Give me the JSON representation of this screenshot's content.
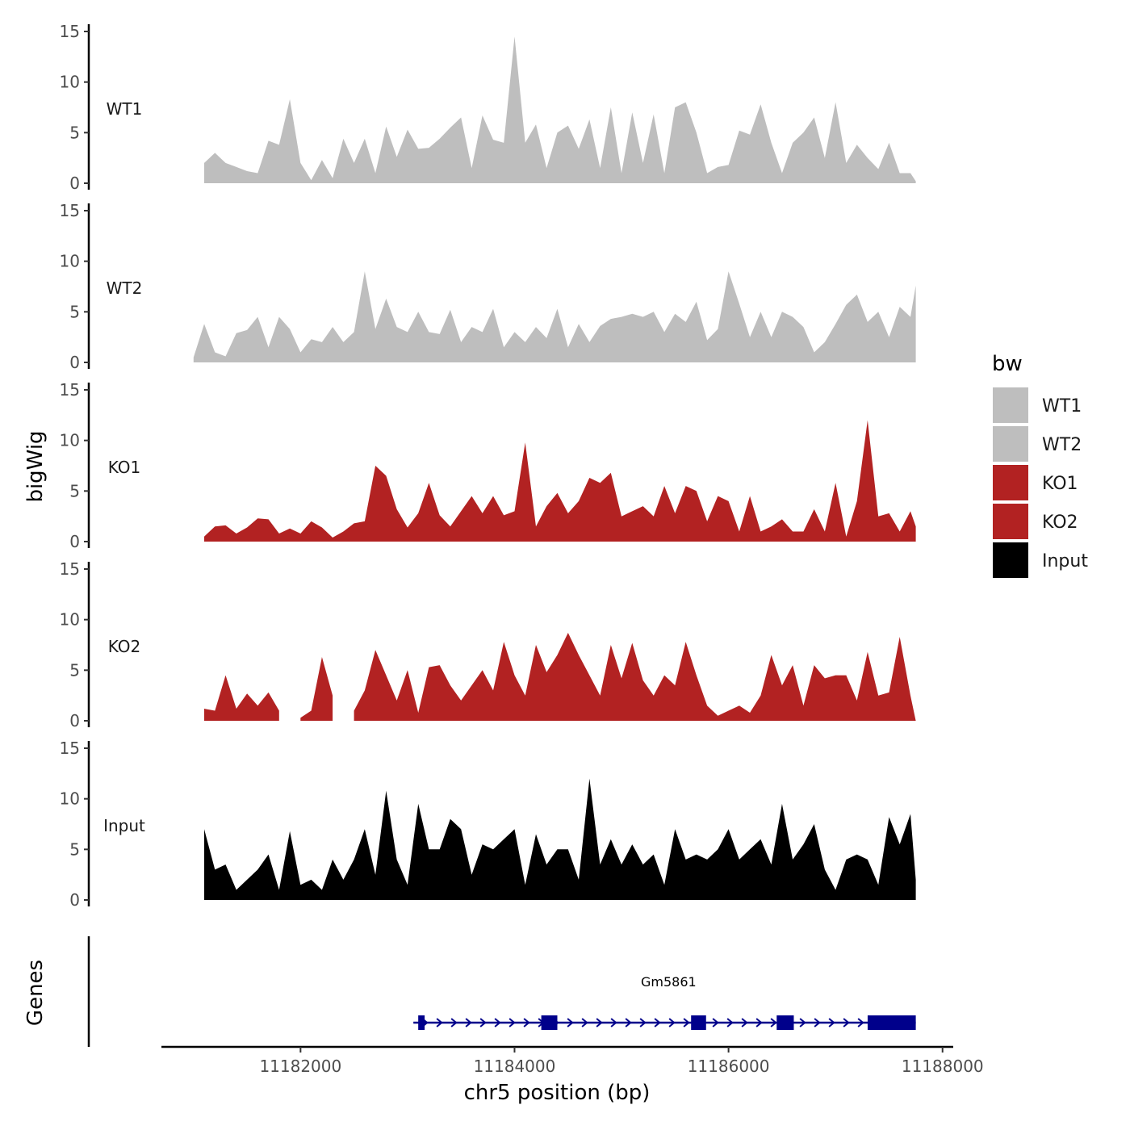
{
  "chart_data": {
    "type": "area",
    "title": "",
    "ylabel": "bigWig",
    "xlabel": "chr5 position (bp)",
    "genes_label": "Genes",
    "chromosome": "chr5",
    "xlim": [
      11180700,
      11188100
    ],
    "ylim": [
      0,
      15
    ],
    "yticks": [
      0,
      5,
      10,
      15
    ],
    "xticks": [
      11182000,
      11184000,
      11186000,
      11188000
    ],
    "xtick_labels": [
      "11182000",
      "11184000",
      "11186000",
      "11188000"
    ],
    "legend": {
      "title": "bw",
      "position": "right",
      "entries": [
        {
          "label": "WT1",
          "color": "#BEBEBE"
        },
        {
          "label": "WT2",
          "color": "#BEBEBE"
        },
        {
          "label": "KO1",
          "color": "#B22222"
        },
        {
          "label": "KO2",
          "color": "#B22222"
        },
        {
          "label": "Input",
          "color": "#000000"
        }
      ]
    },
    "series": [
      {
        "name": "WT1",
        "color": "#BEBEBE",
        "x": [
          11181100,
          11181200,
          11181300,
          11181400,
          11181500,
          11181600,
          11181700,
          11181800,
          11181900,
          11182000,
          11182100,
          11182200,
          11182300,
          11182400,
          11182500,
          11182600,
          11182700,
          11182800,
          11182900,
          11183000,
          11183100,
          11183200,
          11183300,
          11183400,
          11183500,
          11183600,
          11183700,
          11183800,
          11183900,
          11184000,
          11184100,
          11184200,
          11184300,
          11184400,
          11184500,
          11184600,
          11184700,
          11184800,
          11184900,
          11185000,
          11185100,
          11185200,
          11185300,
          11185400,
          11185500,
          11185600,
          11185700,
          11185800,
          11185900,
          11186000,
          11186100,
          11186200,
          11186300,
          11186400,
          11186500,
          11186600,
          11186700,
          11186800,
          11186900,
          11187000,
          11187100,
          11187200,
          11187300,
          11187400,
          11187500,
          11187600,
          11187700,
          11187750
        ],
        "values": [
          2.0,
          3.0,
          2.0,
          1.6,
          1.2,
          1.0,
          4.2,
          3.8,
          8.3,
          2.0,
          0.3,
          2.3,
          0.5,
          4.4,
          2.0,
          4.4,
          1.0,
          5.6,
          2.6,
          5.3,
          3.4,
          3.5,
          4.4,
          5.5,
          6.5,
          1.5,
          6.7,
          4.3,
          4.0,
          14.5,
          4.0,
          5.8,
          1.5,
          5.0,
          5.7,
          3.4,
          6.3,
          1.5,
          7.5,
          1.0,
          7.0,
          2.0,
          6.8,
          1.0,
          7.5,
          8.0,
          5.0,
          1.0,
          1.6,
          1.8,
          5.2,
          4.8,
          7.8,
          4.0,
          1.0,
          4.0,
          5.0,
          6.5,
          2.5,
          8.0,
          2.0,
          3.8,
          2.5,
          1.4,
          4.0,
          1.0,
          1.0,
          0.2
        ]
      },
      {
        "name": "WT2",
        "color": "#BEBEBE",
        "x": [
          11181000,
          11181100,
          11181200,
          11181300,
          11181400,
          11181500,
          11181600,
          11181700,
          11181800,
          11181900,
          11182000,
          11182100,
          11182200,
          11182300,
          11182400,
          11182500,
          11182600,
          11182700,
          11182800,
          11182900,
          11183000,
          11183100,
          11183200,
          11183300,
          11183400,
          11183500,
          11183600,
          11183700,
          11183800,
          11183900,
          11184000,
          11184100,
          11184200,
          11184300,
          11184400,
          11184500,
          11184600,
          11184700,
          11184800,
          11184900,
          11185000,
          11185100,
          11185200,
          11185300,
          11185400,
          11185500,
          11185600,
          11185700,
          11185800,
          11185900,
          11186000,
          11186100,
          11186200,
          11186300,
          11186400,
          11186500,
          11186600,
          11186700,
          11186800,
          11186900,
          11187000,
          11187100,
          11187200,
          11187300,
          11187400,
          11187500,
          11187600,
          11187700,
          11187750
        ],
        "values": [
          0.5,
          3.8,
          1.0,
          0.6,
          2.9,
          3.2,
          4.5,
          1.5,
          4.5,
          3.3,
          1.0,
          2.3,
          2.0,
          3.5,
          2.0,
          3.0,
          9.0,
          3.3,
          6.3,
          3.5,
          3.0,
          5.0,
          3.0,
          2.8,
          5.2,
          2.0,
          3.5,
          3.0,
          5.3,
          1.5,
          3.0,
          2.0,
          3.5,
          2.4,
          5.3,
          1.5,
          3.8,
          2.0,
          3.6,
          4.3,
          4.5,
          4.8,
          4.5,
          5.0,
          3.0,
          4.8,
          4.0,
          6.0,
          2.2,
          3.3,
          9.0,
          5.8,
          2.5,
          5.0,
          2.5,
          5.0,
          4.5,
          3.5,
          1.0,
          2.0,
          3.8,
          5.7,
          6.7,
          4.0,
          5.0,
          2.5,
          5.5,
          4.5,
          7.6
        ]
      },
      {
        "name": "KO1",
        "color": "#B22222",
        "x": [
          11181100,
          11181200,
          11181300,
          11181400,
          11181500,
          11181600,
          11181700,
          11181800,
          11181900,
          11182000,
          11182100,
          11182200,
          11182300,
          11182400,
          11182500,
          11182600,
          11182700,
          11182800,
          11182900,
          11183000,
          11183100,
          11183200,
          11183300,
          11183400,
          11183500,
          11183600,
          11183700,
          11183800,
          11183900,
          11184000,
          11184100,
          11184200,
          11184300,
          11184400,
          11184500,
          11184600,
          11184700,
          11184800,
          11184900,
          11185000,
          11185100,
          11185200,
          11185300,
          11185400,
          11185500,
          11185600,
          11185700,
          11185800,
          11185900,
          11186000,
          11186100,
          11186200,
          11186300,
          11186400,
          11186500,
          11186600,
          11186700,
          11186800,
          11186900,
          11187000,
          11187100,
          11187200,
          11187300,
          11187400,
          11187500,
          11187600,
          11187700,
          11187750
        ],
        "values": [
          0.5,
          1.5,
          1.6,
          0.8,
          1.4,
          2.3,
          2.2,
          0.8,
          1.3,
          0.8,
          2.0,
          1.4,
          0.4,
          1.0,
          1.8,
          2.0,
          7.5,
          6.5,
          3.2,
          1.4,
          2.8,
          5.8,
          2.6,
          1.5,
          3.0,
          4.5,
          2.8,
          4.5,
          2.6,
          3.0,
          9.8,
          1.5,
          3.5,
          4.8,
          2.8,
          4.0,
          6.3,
          5.8,
          6.8,
          2.5,
          3.0,
          3.5,
          2.5,
          5.5,
          2.8,
          5.5,
          5.0,
          2.0,
          4.5,
          4.0,
          1.0,
          4.5,
          1.0,
          1.5,
          2.2,
          1.0,
          1.0,
          3.2,
          1.0,
          5.8,
          0.5,
          4.0,
          12.0,
          2.5,
          2.8,
          1.0,
          3.0,
          1.5
        ],
        "gaps": []
      },
      {
        "name": "KO2",
        "color": "#B22222",
        "x": [
          11181100,
          11181200,
          11181300,
          11181400,
          11181500,
          11181600,
          11181700,
          11181800,
          11181900,
          11182000,
          11182100,
          11182200,
          11182300,
          11182400,
          11182500,
          11182600,
          11182700,
          11182800,
          11182900,
          11183000,
          11183100,
          11183200,
          11183300,
          11183400,
          11183500,
          11183600,
          11183700,
          11183800,
          11183900,
          11184000,
          11184100,
          11184200,
          11184300,
          11184400,
          11184500,
          11184600,
          11184700,
          11184800,
          11184900,
          11185000,
          11185100,
          11185200,
          11185300,
          11185400,
          11185500,
          11185600,
          11185700,
          11185800,
          11185900,
          11186000,
          11186100,
          11186200,
          11186300,
          11186400,
          11186500,
          11186600,
          11186700,
          11186800,
          11186900,
          11187000,
          11187100,
          11187200,
          11187300,
          11187400,
          11187500,
          11187600,
          11187700,
          11187750
        ],
        "values": [
          1.2,
          1.0,
          4.5,
          1.2,
          2.7,
          1.5,
          2.8,
          1.0,
          0.0,
          0.3,
          1.0,
          6.3,
          2.5,
          0.0,
          1.0,
          3.0,
          7.0,
          4.5,
          2.0,
          5.0,
          0.8,
          5.3,
          5.5,
          3.5,
          2.0,
          3.5,
          5.0,
          3.0,
          7.8,
          4.5,
          2.5,
          7.5,
          4.8,
          6.5,
          8.7,
          6.5,
          4.5,
          2.5,
          7.5,
          4.2,
          7.7,
          4.0,
          2.5,
          4.5,
          3.5,
          7.8,
          4.5,
          1.5,
          0.5,
          1.0,
          1.5,
          0.8,
          2.5,
          6.5,
          3.5,
          5.5,
          1.5,
          5.5,
          4.2,
          4.5,
          4.5,
          2.0,
          6.8,
          2.5,
          2.8,
          8.3,
          2.5,
          0.0
        ],
        "gaps": [
          [
            11181880,
            11181960
          ],
          [
            11182380,
            11182440
          ]
        ]
      },
      {
        "name": "Input",
        "color": "#000000",
        "x": [
          11181100,
          11181200,
          11181300,
          11181400,
          11181500,
          11181600,
          11181700,
          11181800,
          11181900,
          11182000,
          11182100,
          11182200,
          11182300,
          11182400,
          11182500,
          11182600,
          11182700,
          11182800,
          11182900,
          11183000,
          11183100,
          11183200,
          11183300,
          11183400,
          11183500,
          11183600,
          11183700,
          11183800,
          11183900,
          11184000,
          11184100,
          11184200,
          11184300,
          11184400,
          11184500,
          11184600,
          11184700,
          11184800,
          11184900,
          11185000,
          11185100,
          11185200,
          11185300,
          11185400,
          11185500,
          11185600,
          11185700,
          11185800,
          11185900,
          11186000,
          11186100,
          11186200,
          11186300,
          11186400,
          11186500,
          11186600,
          11186700,
          11186800,
          11186900,
          11187000,
          11187100,
          11187200,
          11187300,
          11187400,
          11187500,
          11187600,
          11187700,
          11187750
        ],
        "values": [
          7.0,
          3.0,
          3.5,
          1.0,
          2.0,
          3.0,
          4.5,
          1.0,
          6.8,
          1.5,
          2.0,
          1.0,
          4.0,
          2.0,
          4.0,
          7.0,
          2.5,
          10.8,
          4.0,
          1.5,
          9.5,
          5.0,
          5.0,
          8.0,
          7.0,
          2.5,
          5.5,
          5.0,
          6.0,
          7.0,
          1.5,
          6.5,
          3.5,
          5.0,
          5.0,
          2.0,
          12.0,
          3.5,
          6.0,
          3.5,
          5.5,
          3.5,
          4.5,
          1.5,
          7.0,
          4.0,
          4.5,
          4.0,
          5.0,
          7.0,
          4.0,
          5.0,
          6.0,
          3.5,
          9.5,
          4.0,
          5.5,
          7.5,
          3.0,
          1.0,
          4.0,
          4.5,
          4.0,
          1.5,
          8.2,
          5.5,
          8.5,
          2.0
        ]
      }
    ],
    "genes": [
      {
        "name": "Gm5861",
        "strand": "+",
        "color": "#00008B",
        "start": 11183100,
        "end": 11187750,
        "exons": [
          [
            11183100,
            11183160
          ],
          [
            11184250,
            11184400
          ],
          [
            11185650,
            11185790
          ],
          [
            11186450,
            11186610
          ],
          [
            11187300,
            11187750
          ]
        ]
      }
    ]
  }
}
